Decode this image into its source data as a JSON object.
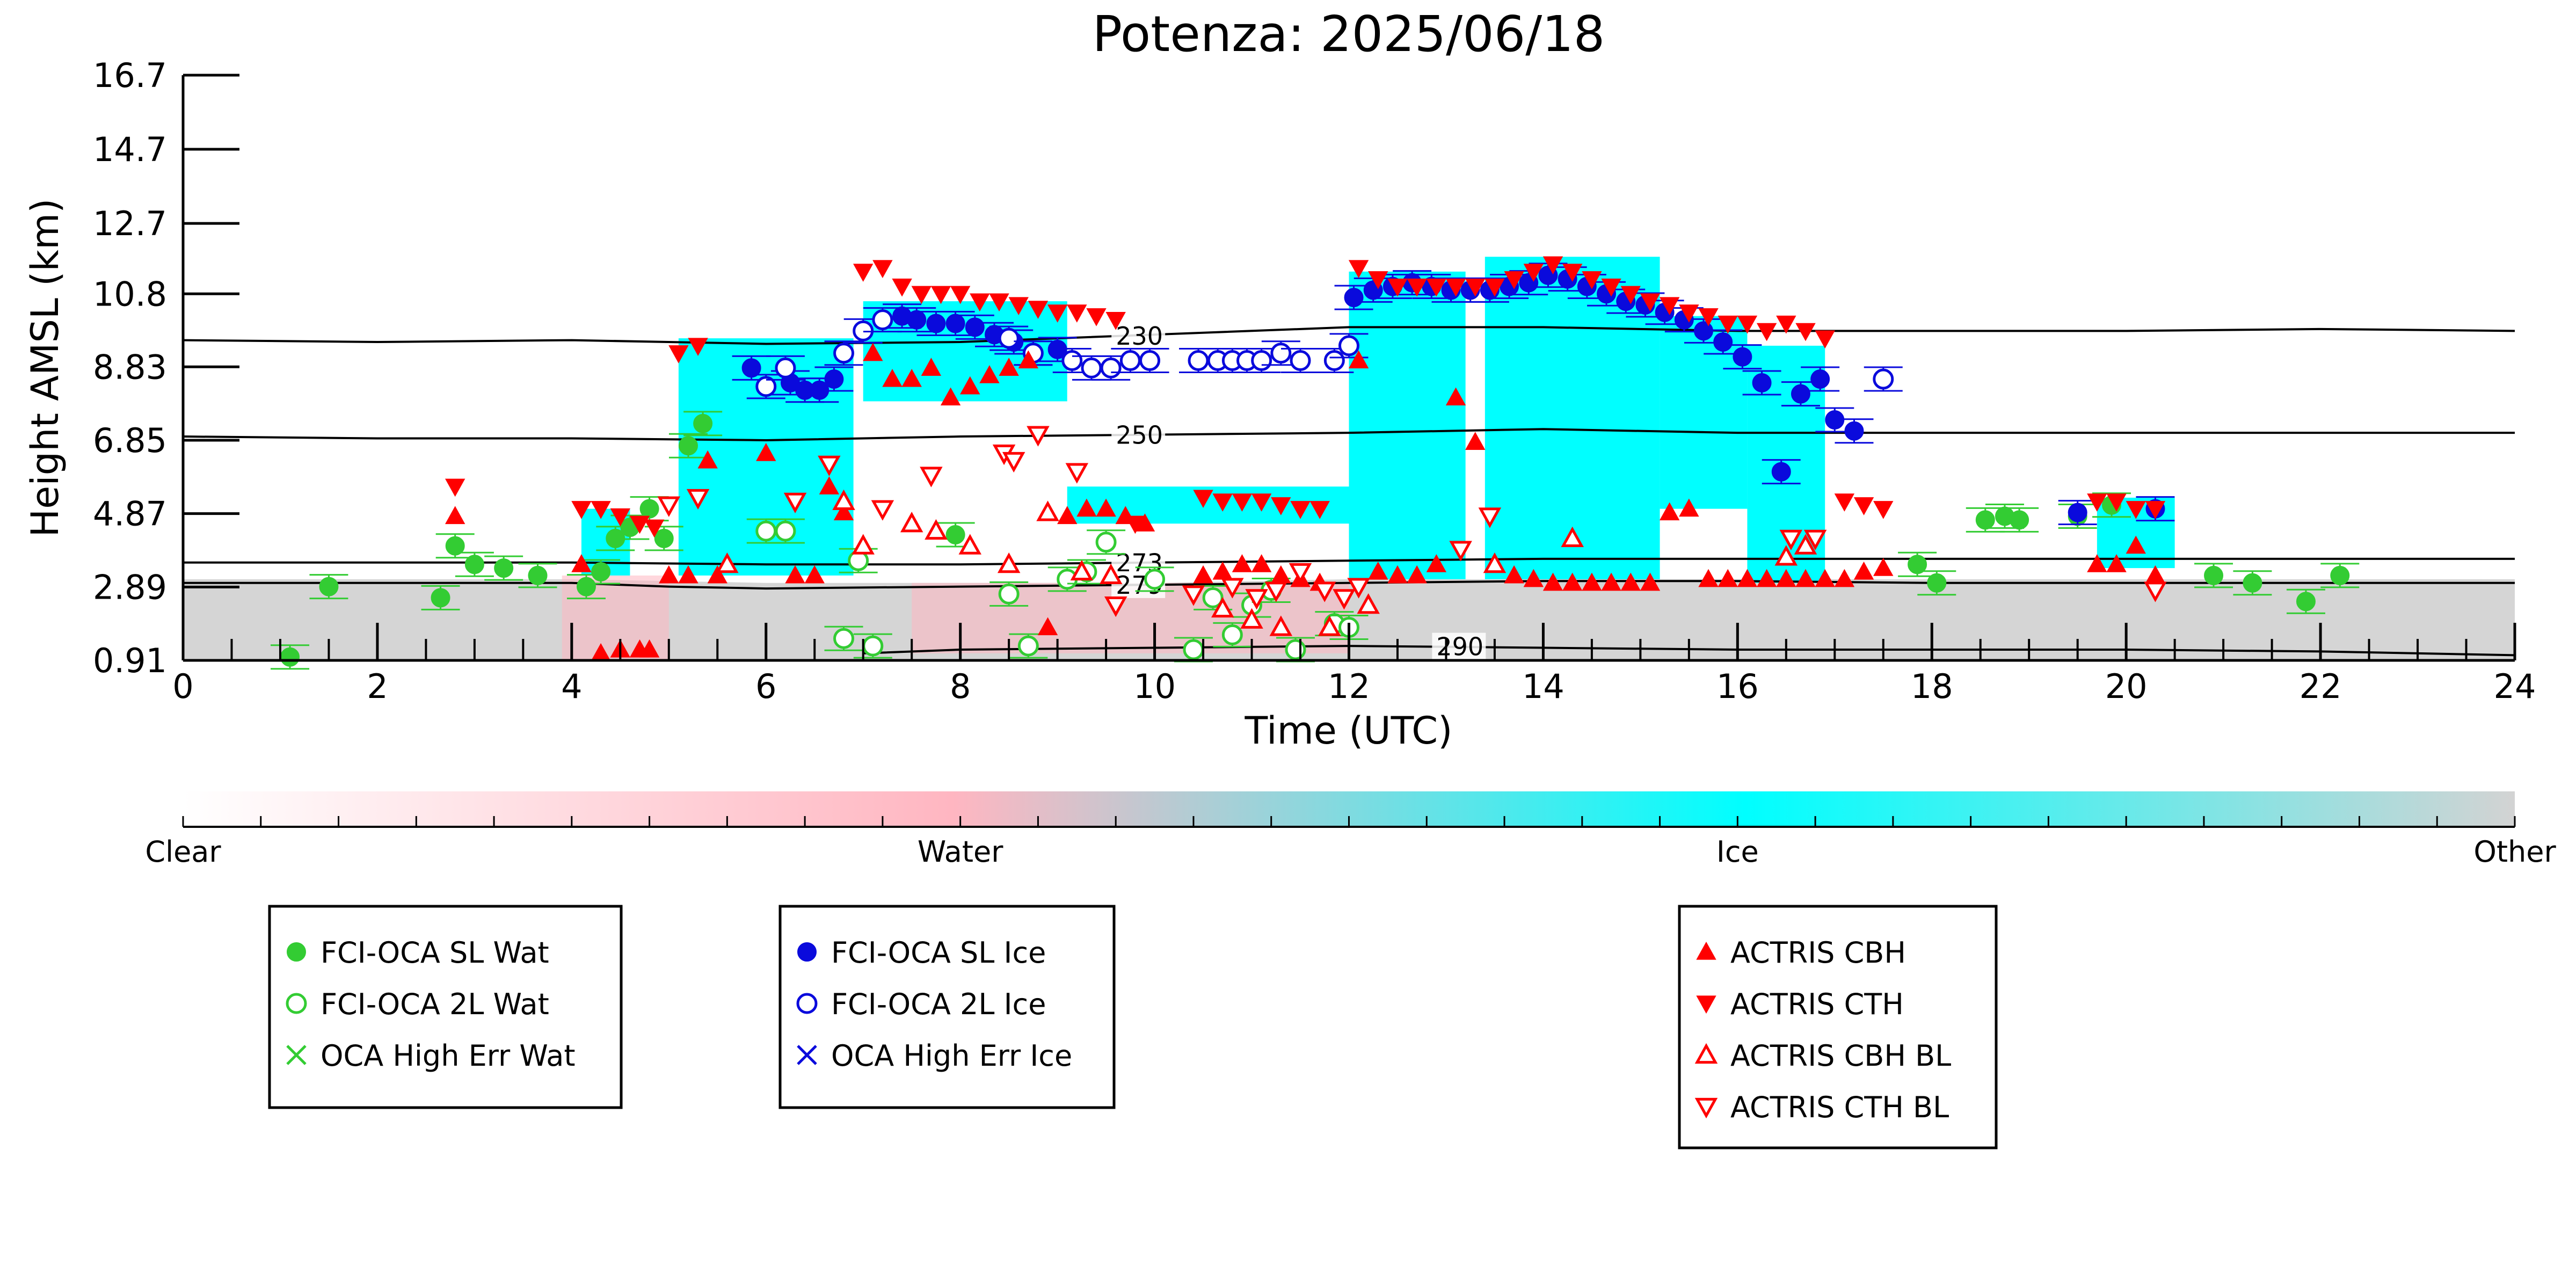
{
  "chart_data": {
    "type": "scatter",
    "title": "Potenza: 2025/06/18",
    "xlabel": "Time (UTC)",
    "ylabel": "Height AMSL (km)",
    "xlim": [
      0,
      24
    ],
    "ylim": [
      0.91,
      16.7
    ],
    "x_ticks": [
      "0",
      "2",
      "4",
      "6",
      "8",
      "10",
      "12",
      "14",
      "16",
      "18",
      "20",
      "22",
      "24"
    ],
    "y_ticks": [
      "16.7",
      "14.7",
      "12.7",
      "10.8",
      "8.83",
      "6.85",
      "4.87",
      "2.89",
      "0.91"
    ],
    "grid": false,
    "contours": [
      {
        "label": "230",
        "label_x": 9.6,
        "points": [
          [
            0,
            9.55
          ],
          [
            2,
            9.5
          ],
          [
            4,
            9.55
          ],
          [
            6,
            9.45
          ],
          [
            8,
            9.5
          ],
          [
            10,
            9.7
          ],
          [
            12,
            9.9
          ],
          [
            14,
            9.9
          ],
          [
            16,
            9.8
          ],
          [
            18,
            9.8
          ],
          [
            20,
            9.8
          ],
          [
            22,
            9.85
          ],
          [
            24,
            9.8
          ]
        ]
      },
      {
        "label": "250",
        "label_x": 9.6,
        "points": [
          [
            0,
            6.95
          ],
          [
            2,
            6.9
          ],
          [
            4,
            6.9
          ],
          [
            6,
            6.85
          ],
          [
            8,
            6.95
          ],
          [
            10,
            7.0
          ],
          [
            12,
            7.05
          ],
          [
            14,
            7.15
          ],
          [
            16,
            7.05
          ],
          [
            18,
            7.05
          ],
          [
            20,
            7.05
          ],
          [
            22,
            7.05
          ],
          [
            24,
            7.05
          ]
        ]
      },
      {
        "label": "273",
        "label_x": 9.6,
        "points": [
          [
            0,
            3.55
          ],
          [
            2,
            3.55
          ],
          [
            4,
            3.55
          ],
          [
            6,
            3.5
          ],
          [
            8,
            3.5
          ],
          [
            10,
            3.55
          ],
          [
            12,
            3.6
          ],
          [
            14,
            3.65
          ],
          [
            16,
            3.65
          ],
          [
            18,
            3.65
          ],
          [
            20,
            3.65
          ],
          [
            22,
            3.65
          ],
          [
            24,
            3.65
          ]
        ]
      },
      {
        "label": "279",
        "label_x": 9.6,
        "points": [
          [
            0,
            3.0
          ],
          [
            2,
            3.0
          ],
          [
            4,
            3.0
          ],
          [
            5,
            2.9
          ],
          [
            6,
            2.85
          ],
          [
            8,
            2.9
          ],
          [
            10,
            2.95
          ],
          [
            12,
            3.0
          ],
          [
            14,
            3.05
          ],
          [
            16,
            3.05
          ],
          [
            18,
            3.0
          ],
          [
            20,
            3.0
          ],
          [
            22,
            3.0
          ],
          [
            24,
            3.0
          ]
        ]
      },
      {
        "label": "290",
        "label_x": 12.9,
        "points": [
          [
            7,
            1.1
          ],
          [
            8,
            1.2
          ],
          [
            10,
            1.25
          ],
          [
            12,
            1.3
          ],
          [
            14,
            1.25
          ],
          [
            16,
            1.2
          ],
          [
            18,
            1.2
          ],
          [
            20,
            1.2
          ],
          [
            22,
            1.15
          ],
          [
            24,
            1.05
          ]
        ]
      }
    ],
    "shading": {
      "other_band": [
        [
          0,
          3.1
        ],
        [
          2,
          3.1
        ],
        [
          4,
          3.1
        ],
        [
          6,
          3.0
        ],
        [
          8,
          3.0
        ],
        [
          10,
          3.0
        ],
        [
          12,
          3.1
        ],
        [
          14,
          3.1
        ],
        [
          16,
          3.1
        ],
        [
          18,
          3.1
        ],
        [
          20,
          3.1
        ],
        [
          22,
          3.1
        ],
        [
          24,
          3.1
        ]
      ],
      "ice_regions": [
        {
          "x0": 5.1,
          "x1": 6.9,
          "y0": 3.2,
          "y1": 9.6
        },
        {
          "x0": 7.0,
          "x1": 9.1,
          "y0": 7.9,
          "y1": 10.6
        },
        {
          "x0": 9.1,
          "x1": 12.0,
          "y0": 4.6,
          "y1": 5.6
        },
        {
          "x0": 12.0,
          "x1": 13.2,
          "y0": 3.1,
          "y1": 11.4
        },
        {
          "x0": 13.4,
          "x1": 15.2,
          "y0": 3.1,
          "y1": 11.8
        },
        {
          "x0": 15.2,
          "x1": 16.1,
          "y0": 5.0,
          "y1": 10.2
        },
        {
          "x0": 16.1,
          "x1": 16.9,
          "y0": 3.0,
          "y1": 9.4
        },
        {
          "x0": 19.7,
          "x1": 20.5,
          "y0": 3.4,
          "y1": 5.3
        },
        {
          "x0": 4.1,
          "x1": 4.6,
          "y0": 3.2,
          "y1": 5.0
        }
      ],
      "water_regions": [
        {
          "x0": 3.9,
          "x1": 5.0,
          "y0": 0.91,
          "y1": 3.2
        },
        {
          "x0": 7.5,
          "x1": 12.0,
          "y0": 1.1,
          "y1": 3.0
        }
      ]
    },
    "series": [
      {
        "name": "FCI-OCA SL Wat",
        "marker": "filled-circle",
        "color": "#33cc33",
        "x": [
          1.1,
          1.5,
          2.65,
          2.8,
          3.0,
          3.3,
          3.65,
          4.15,
          4.3,
          4.45,
          4.6,
          4.8,
          4.95,
          5.2,
          5.35,
          7.95,
          17.85,
          18.05,
          18.55,
          18.75,
          18.9,
          19.5,
          19.85,
          20.9,
          21.3,
          21.85,
          22.2
        ],
        "y": [
          1.0,
          2.9,
          2.6,
          4.0,
          3.5,
          3.4,
          3.2,
          2.9,
          3.3,
          4.2,
          4.5,
          5.0,
          4.2,
          6.7,
          7.3,
          4.3,
          3.5,
          3.0,
          4.7,
          4.8,
          4.7,
          4.8,
          5.1,
          3.2,
          3.0,
          2.5,
          3.2
        ]
      },
      {
        "name": "FCI-OCA 2L Wat",
        "marker": "open-circle",
        "color": "#33cc33",
        "x": [
          6.0,
          6.2,
          6.8,
          6.95,
          7.1,
          8.5,
          8.7,
          9.1,
          9.3,
          9.5,
          10.0,
          10.4,
          10.6,
          10.8,
          11.0,
          11.2,
          11.45,
          11.85,
          12.0
        ],
        "y": [
          4.4,
          4.4,
          1.5,
          3.6,
          1.3,
          2.7,
          1.3,
          3.1,
          3.3,
          4.1,
          3.1,
          1.2,
          2.6,
          1.6,
          2.4,
          2.8,
          1.2,
          1.9,
          1.8
        ]
      },
      {
        "name": "OCA High Err Wat",
        "marker": "x",
        "color": "#33cc33",
        "x": [],
        "y": []
      },
      {
        "name": "FCI-OCA SL Ice",
        "marker": "filled-circle",
        "color": "#0a0adc",
        "x": [
          5.85,
          6.25,
          6.4,
          6.55,
          6.7,
          7.4,
          7.55,
          7.75,
          7.95,
          8.15,
          8.35,
          8.55,
          8.75,
          9.0,
          12.05,
          12.25,
          12.45,
          12.65,
          12.85,
          13.05,
          13.25,
          13.45,
          13.65,
          13.85,
          14.05,
          14.25,
          14.45,
          14.65,
          14.85,
          15.05,
          15.25,
          15.45,
          15.65,
          15.85,
          16.05,
          16.25,
          16.45,
          16.65,
          16.85,
          17.0,
          17.2,
          19.5,
          20.3
        ],
        "y": [
          8.8,
          8.4,
          8.2,
          8.2,
          8.5,
          10.2,
          10.1,
          10.0,
          10.0,
          9.9,
          9.7,
          9.5,
          9.2,
          9.3,
          10.7,
          10.9,
          11.0,
          11.1,
          11.0,
          10.9,
          10.9,
          10.9,
          11.0,
          11.1,
          11.3,
          11.2,
          11.0,
          10.8,
          10.6,
          10.5,
          10.3,
          10.1,
          9.8,
          9.5,
          9.1,
          8.4,
          6.0,
          8.1,
          8.5,
          7.4,
          7.1,
          4.9,
          5.0
        ]
      },
      {
        "name": "FCI-OCA 2L Ice",
        "marker": "open-circle",
        "color": "#0a0adc",
        "x": [
          6.0,
          6.2,
          6.8,
          7.0,
          7.2,
          8.5,
          8.75,
          9.15,
          9.35,
          9.55,
          9.75,
          9.95,
          10.45,
          10.65,
          10.8,
          10.95,
          11.1,
          11.3,
          11.5,
          11.85,
          12.0,
          17.5
        ],
        "y": [
          8.3,
          8.8,
          9.2,
          9.8,
          10.1,
          9.6,
          9.2,
          9.0,
          8.8,
          8.8,
          9.0,
          9.0,
          9.0,
          9.0,
          9.0,
          9.0,
          9.0,
          9.2,
          9.0,
          9.0,
          9.4,
          8.5
        ]
      },
      {
        "name": "OCA High Err Ice",
        "marker": "x",
        "color": "#0a0adc",
        "x": [],
        "y": []
      },
      {
        "name": "ACTRIS CBH",
        "marker": "triangle-up",
        "color": "#ff0000",
        "x": [
          2.8,
          4.1,
          4.3,
          4.5,
          4.7,
          4.8,
          5.0,
          5.2,
          5.4,
          5.5,
          6.0,
          6.3,
          6.5,
          6.65,
          6.8,
          7.1,
          7.3,
          7.5,
          7.7,
          7.9,
          8.1,
          8.3,
          8.5,
          8.7,
          8.9,
          9.1,
          9.3,
          9.5,
          9.7,
          9.9,
          10.5,
          10.7,
          10.9,
          11.1,
          11.3,
          11.5,
          11.7,
          12.1,
          12.3,
          12.5,
          12.7,
          12.9,
          13.1,
          13.3,
          13.5,
          13.7,
          13.9,
          14.1,
          14.3,
          14.5,
          14.7,
          14.9,
          15.1,
          15.3,
          15.5,
          15.7,
          15.9,
          16.1,
          16.3,
          16.5,
          16.7,
          16.9,
          17.1,
          17.3,
          17.5,
          19.7,
          19.9,
          20.1,
          20.3
        ],
        "y": [
          4.8,
          3.5,
          1.1,
          1.2,
          1.2,
          1.2,
          3.2,
          3.2,
          6.3,
          3.2,
          6.5,
          3.2,
          3.2,
          5.6,
          4.9,
          9.2,
          8.5,
          8.5,
          8.8,
          8.0,
          8.3,
          8.6,
          8.8,
          9.0,
          1.8,
          4.8,
          5.0,
          5.0,
          4.8,
          4.6,
          3.2,
          3.3,
          3.5,
          3.5,
          3.2,
          3.1,
          3.0,
          9.0,
          3.3,
          3.2,
          3.2,
          3.5,
          8.0,
          6.8,
          3.5,
          3.2,
          3.1,
          3.0,
          3.0,
          3.0,
          3.0,
          3.0,
          3.0,
          4.9,
          5.0,
          3.1,
          3.1,
          3.1,
          3.1,
          3.1,
          3.1,
          3.1,
          3.1,
          3.3,
          3.4,
          3.5,
          3.5,
          4.0,
          3.2
        ]
      },
      {
        "name": "ACTRIS CTH",
        "marker": "triangle-down",
        "color": "#ff0000",
        "x": [
          2.8,
          4.1,
          4.3,
          4.5,
          4.7,
          4.85,
          5.1,
          5.3,
          7.0,
          7.2,
          7.4,
          7.6,
          7.8,
          8.0,
          8.2,
          8.4,
          8.6,
          8.8,
          9.0,
          9.2,
          9.4,
          9.6,
          9.8,
          10.5,
          10.7,
          10.9,
          11.1,
          11.3,
          11.5,
          11.7,
          12.1,
          12.3,
          12.5,
          12.7,
          12.9,
          13.1,
          13.3,
          13.5,
          13.7,
          13.9,
          14.1,
          14.3,
          14.5,
          14.7,
          14.9,
          15.1,
          15.3,
          15.5,
          15.7,
          15.9,
          16.1,
          16.3,
          16.5,
          16.7,
          16.9,
          17.1,
          17.3,
          17.5,
          19.7,
          19.9,
          20.1,
          20.3
        ],
        "y": [
          5.6,
          5.0,
          5.0,
          4.8,
          4.6,
          4.5,
          9.2,
          9.4,
          11.4,
          11.5,
          11.0,
          10.8,
          10.8,
          10.8,
          10.6,
          10.6,
          10.5,
          10.4,
          10.3,
          10.3,
          10.2,
          10.1,
          4.6,
          5.3,
          5.2,
          5.2,
          5.2,
          5.1,
          5.0,
          5.0,
          11.5,
          11.2,
          11.0,
          11.0,
          11.0,
          11.0,
          11.0,
          11.0,
          11.2,
          11.4,
          11.6,
          11.4,
          11.2,
          11.0,
          10.8,
          10.6,
          10.5,
          10.3,
          10.2,
          10.0,
          10.0,
          9.8,
          10.0,
          9.8,
          9.6,
          5.2,
          5.1,
          5.0,
          5.2,
          5.2,
          5.0,
          5.0
        ]
      },
      {
        "name": "ACTRIS CBH BL",
        "marker": "open-triangle-up",
        "color": "#ff0000",
        "x": [
          5.6,
          6.8,
          7.0,
          7.5,
          7.75,
          8.1,
          8.5,
          8.9,
          9.25,
          9.55,
          10.7,
          11.0,
          11.3,
          11.8,
          12.2,
          13.5,
          14.3,
          16.5,
          16.7
        ],
        "y": [
          3.5,
          5.2,
          4.0,
          4.6,
          4.4,
          4.0,
          3.5,
          4.9,
          3.3,
          3.2,
          2.3,
          2.0,
          1.8,
          1.8,
          2.4,
          3.5,
          4.2,
          3.7,
          4.0
        ]
      },
      {
        "name": "ACTRIS CTH BL",
        "marker": "open-triangle-down",
        "color": "#ff0000",
        "x": [
          5.0,
          5.3,
          6.3,
          6.65,
          7.2,
          7.7,
          8.45,
          8.55,
          8.8,
          9.2,
          9.6,
          10.4,
          10.8,
          11.05,
          11.25,
          11.5,
          11.75,
          11.95,
          12.1,
          13.15,
          13.45,
          16.55,
          16.8,
          20.3
        ],
        "y": [
          5.1,
          5.3,
          5.2,
          6.2,
          5.0,
          5.9,
          6.5,
          6.3,
          7.0,
          6.0,
          2.4,
          2.7,
          2.9,
          2.6,
          2.8,
          3.3,
          2.8,
          2.6,
          2.9,
          3.9,
          4.8,
          4.2,
          4.2,
          2.8
        ]
      }
    ],
    "colorbar": {
      "labels": [
        "Clear",
        "Water",
        "Ice",
        "Other"
      ],
      "colors": [
        "#ffffff",
        "#ffb6c1",
        "#00ffff",
        "#d3d3d3"
      ]
    },
    "legends": [
      {
        "entries": [
          "FCI-OCA SL Wat",
          "FCI-OCA 2L Wat",
          "OCA High Err Wat"
        ]
      },
      {
        "entries": [
          "FCI-OCA SL Ice",
          "FCI-OCA 2L Ice",
          "OCA High Err Ice"
        ]
      },
      {
        "entries": [
          "ACTRIS CBH",
          "ACTRIS CTH",
          "ACTRIS CBH BL",
          "ACTRIS CTH BL"
        ]
      }
    ]
  }
}
